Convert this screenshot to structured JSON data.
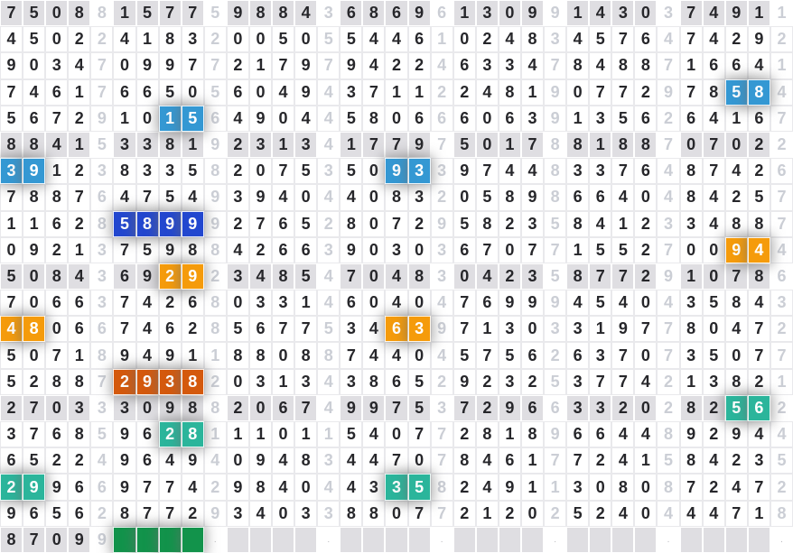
{
  "chart_data": {
    "type": "table",
    "title": "",
    "columns": 35,
    "groups_per_row": 7,
    "group_size": 5,
    "shaded_row_interval": 5,
    "faded_col_interval": 5,
    "rows": [
      "75088157759884368696130991430374911",
      "45022418320050554461024834576474292",
      "90347099772179794224633478488716641",
      "74617665056049437112248190772978584",
      "56729101564904458066606391356264167",
      "88415338192313417797501788188707022",
      "39123833582075350933974483376487426",
      "78876475493940440832058986640484257",
      "11628589992765280729582358412334887",
      "09213759884266390303670771552700944",
      "50843692923485470483042358772910786",
      "70663742680331460404769994540435843",
      "48066746285677534639713033197780472",
      "50718949118808874404575626370735077",
      "52887293820313438652923253774213821",
      "27033309882067499753729663320282562",
      "37685962811101154077281896644892944",
      "65224964940948344707846177241584235",
      "29966977429840443358249113080872472",
      "96562877293403388077212025240444718",
      "87099GGGG.    .    .    .    .    ."
    ],
    "highlights": [
      {
        "row": 3,
        "cols": [
          32,
          33
        ],
        "color": "lightblue",
        "digits": "58"
      },
      {
        "row": 4,
        "cols": [
          7,
          8
        ],
        "color": "lightblue",
        "digits": "15"
      },
      {
        "row": 6,
        "cols": [
          0,
          1
        ],
        "color": "lightblue",
        "digits": "39"
      },
      {
        "row": 6,
        "cols": [
          17,
          18
        ],
        "color": "lightblue",
        "digits": "93"
      },
      {
        "row": 8,
        "cols": [
          5,
          8
        ],
        "color": "darkblue",
        "digits": "5899"
      },
      {
        "row": 9,
        "cols": [
          32,
          33
        ],
        "color": "orange",
        "digits": "94"
      },
      {
        "row": 10,
        "cols": [
          7,
          8
        ],
        "color": "orange",
        "digits": "29"
      },
      {
        "row": 12,
        "cols": [
          0,
          1
        ],
        "color": "orange",
        "digits": "48"
      },
      {
        "row": 12,
        "cols": [
          17,
          18
        ],
        "color": "orange",
        "digits": "63"
      },
      {
        "row": 14,
        "cols": [
          5,
          8
        ],
        "color": "darkorange",
        "digits": "2938"
      },
      {
        "row": 15,
        "cols": [
          32,
          33
        ],
        "color": "teal",
        "digits": "56"
      },
      {
        "row": 16,
        "cols": [
          7,
          8
        ],
        "color": "teal",
        "digits": "28"
      },
      {
        "row": 18,
        "cols": [
          0,
          1
        ],
        "color": "teal",
        "digits": "29"
      },
      {
        "row": 18,
        "cols": [
          17,
          18
        ],
        "color": "teal",
        "digits": "35"
      },
      {
        "row": 20,
        "cols": [
          5,
          8
        ],
        "color": "green",
        "digits": ""
      }
    ],
    "colors": {
      "lightblue": "#3498D3",
      "darkblue": "#2247CF",
      "orange": "#F59B0B",
      "darkorange": "#D4590D",
      "teal": "#2BB59B",
      "green": "#12934B",
      "shaded-row-bg": "#DFDEE2",
      "white-row-border": "#E9E9EC",
      "faded-digit": "#CBCED5",
      "digit": "#27272B",
      "dot": "#B9B9BD"
    }
  }
}
